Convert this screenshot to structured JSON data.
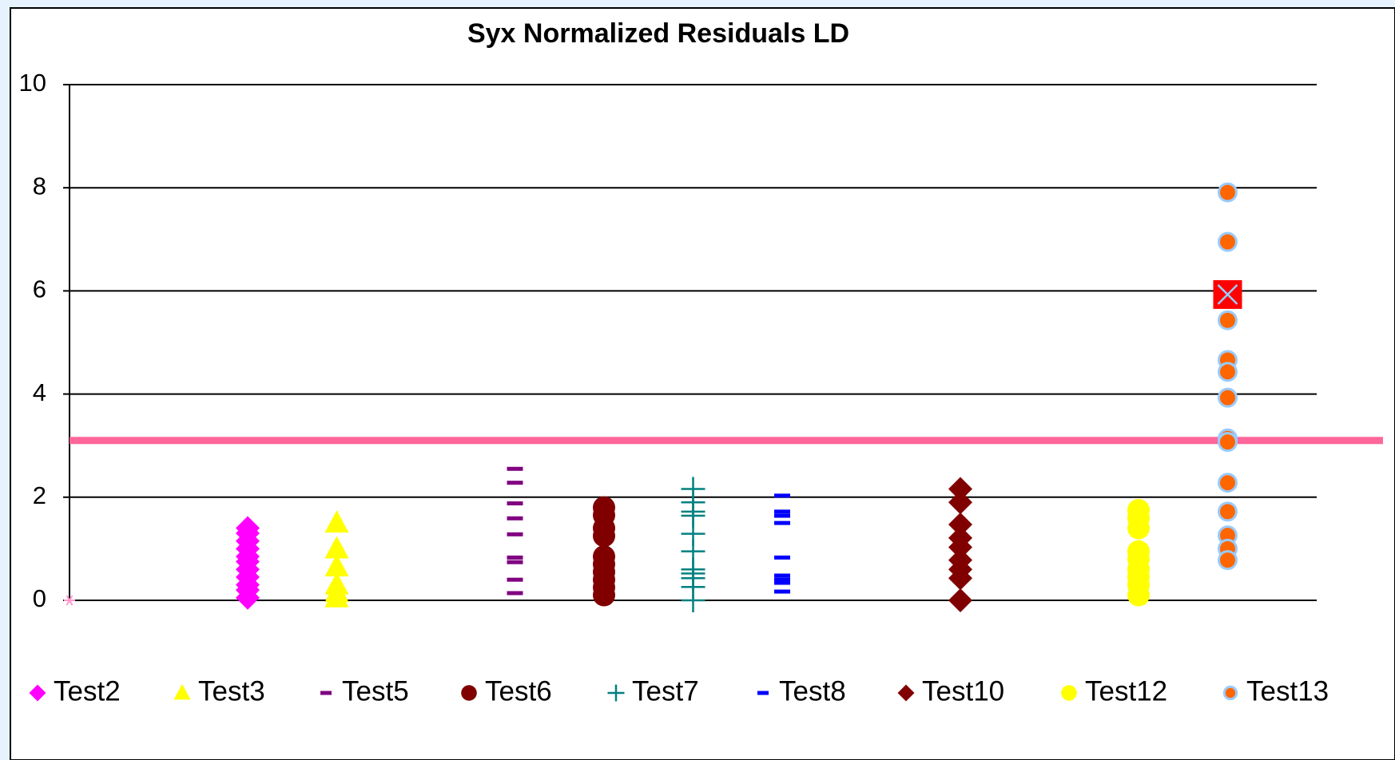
{
  "chart_data": {
    "type": "scatter",
    "title": "Syx Normalized Residuals LD",
    "xlim": [
      0,
      14
    ],
    "ylim": [
      0,
      10
    ],
    "yticks": [
      0,
      2,
      4,
      6,
      8,
      10
    ],
    "grid": true,
    "legend": "bottom",
    "reference_line": {
      "value": 3.1,
      "color": "#ff6699"
    },
    "series": [
      {
        "name": "Test2",
        "marker": "diamond",
        "color": "#ff00ff",
        "x": 2,
        "values": [
          1.4,
          1.3,
          1.15,
          1.0,
          0.85,
          0.75,
          0.6,
          0.45,
          0.3,
          0.2,
          0.05
        ]
      },
      {
        "name": "Test3",
        "marker": "triangle",
        "color": "#ffff00",
        "x": 3,
        "values": [
          1.5,
          1.0,
          0.65,
          0.3,
          0.15,
          0.05
        ]
      },
      {
        "name": "Test5",
        "marker": "dash",
        "color": "#800080",
        "x": 5,
        "values": [
          2.55,
          2.28,
          1.88,
          1.59,
          1.28,
          0.83,
          0.74,
          0.4,
          0.14
        ]
      },
      {
        "name": "Test6",
        "marker": "circle",
        "color": "#800000",
        "x": 6,
        "values": [
          1.8,
          1.65,
          1.4,
          1.25,
          0.85,
          0.7,
          0.55,
          0.4,
          0.25,
          0.1
        ]
      },
      {
        "name": "Test7",
        "marker": "plus",
        "color": "#008080",
        "x": 7,
        "values": [
          2.16,
          1.9,
          1.72,
          1.64,
          1.29,
          0.95,
          0.6,
          0.52,
          0.43,
          0.26,
          0.0
        ]
      },
      {
        "name": "Test8",
        "marker": "dash",
        "color": "#0000ff",
        "x": 8,
        "values": [
          2.03,
          1.72,
          1.64,
          1.5,
          0.83,
          0.48,
          0.4,
          0.34,
          0.17
        ]
      },
      {
        "name": "Test10",
        "marker": "diamond",
        "color": "#800000",
        "x": 10,
        "values": [
          2.16,
          1.9,
          1.47,
          1.21,
          1.03,
          0.78,
          0.6,
          0.43,
          0.0
        ]
      },
      {
        "name": "Test12",
        "marker": "circle",
        "color": "#ffff00",
        "x": 12,
        "values": [
          1.75,
          1.6,
          1.4,
          0.95,
          0.8,
          0.6,
          0.45,
          0.3,
          0.1
        ]
      },
      {
        "name": "Test13",
        "marker": "ring",
        "color": "#ff6600",
        "edge": "#99ccff",
        "x": 13,
        "values": [
          7.91,
          6.95,
          5.43,
          4.66,
          4.43,
          3.93,
          3.14,
          3.07,
          2.28,
          1.72,
          1.26,
          1.0,
          0.78
        ]
      },
      {
        "marker": "star",
        "color": "#ff99cc",
        "x": 0,
        "values": [
          0
        ]
      },
      {
        "marker": "xsquare",
        "color": "#ff0000",
        "x": 13,
        "values": [
          5.93
        ]
      }
    ]
  }
}
